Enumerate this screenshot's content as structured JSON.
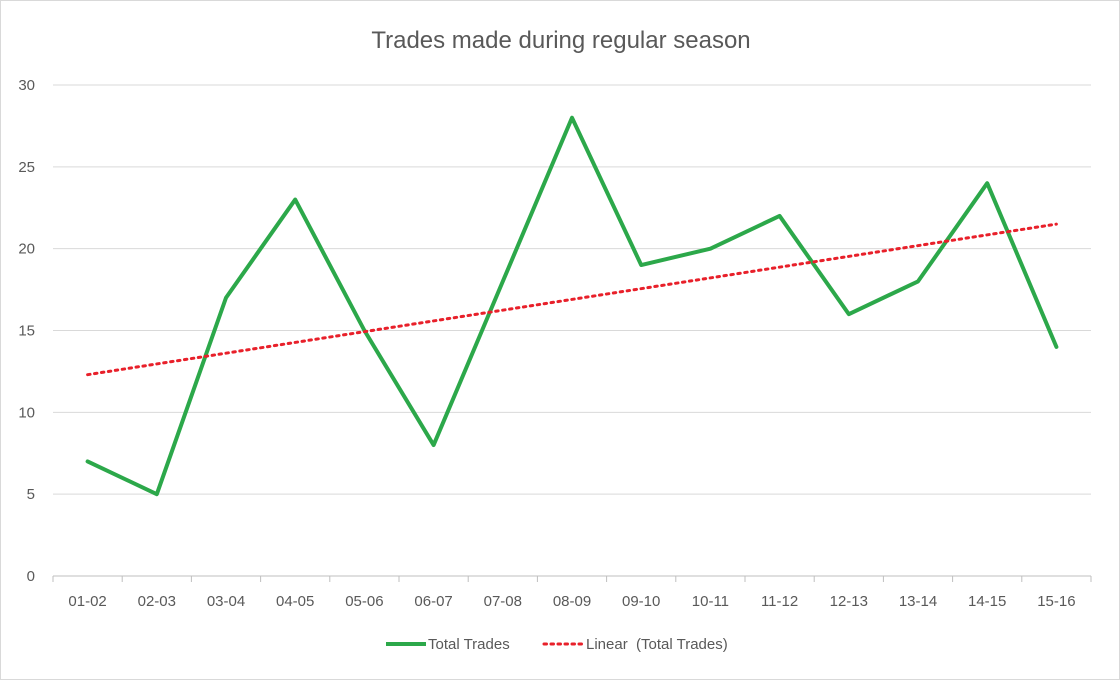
{
  "chart_data": {
    "type": "line",
    "title": "Trades made during regular season",
    "xlabel": "",
    "ylabel": "",
    "categories": [
      "01-02",
      "02-03",
      "03-04",
      "04-05",
      "05-06",
      "06-07",
      "07-08",
      "08-09",
      "09-10",
      "10-11",
      "11-12",
      "12-13",
      "13-14",
      "14-15",
      "15-16"
    ],
    "ylim": [
      0,
      30
    ],
    "yticks": [
      0,
      5,
      10,
      15,
      20,
      25,
      30
    ],
    "grid": true,
    "legend_position": "bottom",
    "series": [
      {
        "name": "Total Trades",
        "color": "#2ca84a",
        "style": "solid",
        "values": [
          7,
          5,
          17,
          23,
          15,
          8,
          18,
          28,
          19,
          20,
          22,
          16,
          18,
          24,
          14
        ]
      },
      {
        "name": "Linear  (Total Trades)",
        "color": "#e8202a",
        "style": "dotted",
        "trendline_of": "Total Trades",
        "start": 12.3,
        "end": 21.5
      }
    ]
  }
}
